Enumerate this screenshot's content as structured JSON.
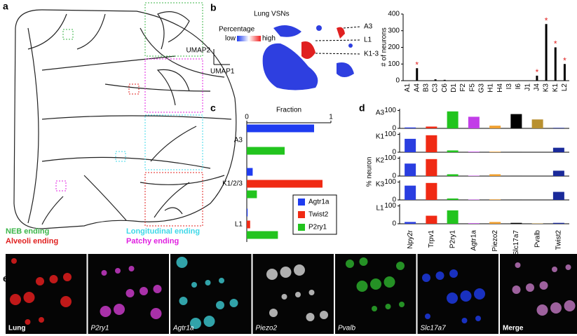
{
  "panels": [
    "a",
    "b",
    "c",
    "d",
    "e"
  ],
  "panel_a": {
    "legend": [
      {
        "text": "NEB ending",
        "color": "#3cb64a"
      },
      {
        "text": "Alveoli ending",
        "color": "#e0201f"
      },
      {
        "text": "Longitudinal ending",
        "color": "#3fd8e8"
      },
      {
        "text": "Patchy ending",
        "color": "#e020e0"
      }
    ]
  },
  "panel_b_umap": {
    "title": "Lung VSNs",
    "scale_title": "Percentage",
    "low": "low",
    "high": "high",
    "y_axis": "UMAP2",
    "x_axis": "UMAP1",
    "clusters": [
      "A3",
      "L1",
      "K1-3"
    ]
  },
  "panel_e": {
    "channels": [
      {
        "text": "Lung",
        "color": "#ff2020"
      },
      {
        "text": "P2ry1",
        "color": "#e040e0"
      },
      {
        "text": "Agtr1a",
        "color": "#40d8e0"
      },
      {
        "text": "Piezo2",
        "color": "#e8e8e8"
      },
      {
        "text": "Pvalb",
        "color": "#30c030"
      },
      {
        "text": "Slc17a7",
        "color": "#2040ff"
      },
      {
        "text": "Merge",
        "color": "#d080d0"
      }
    ]
  },
  "chart_data": [
    {
      "type": "bar",
      "ylabel": "# of neurons",
      "categories": [
        "A1",
        "A4",
        "B3",
        "C3",
        "C6",
        "D1",
        "F2",
        "F5",
        "G3",
        "H1",
        "H4",
        "I3",
        "I6",
        "J1",
        "J4",
        "K3",
        "K1",
        "L2"
      ],
      "values": [
        0,
        75,
        0,
        8,
        5,
        2,
        0,
        0,
        0,
        0,
        0,
        0,
        0,
        0,
        30,
        340,
        200,
        100
      ],
      "starred": [
        false,
        true,
        false,
        false,
        false,
        false,
        false,
        false,
        false,
        false,
        false,
        false,
        false,
        false,
        true,
        true,
        true,
        true
      ],
      "star_label": "*",
      "color": "#000000",
      "star_color": "#e0201f",
      "ylim": [
        0,
        400
      ],
      "yticks": [
        0,
        100,
        200,
        300,
        400
      ]
    },
    {
      "type": "barh",
      "title": "Fraction",
      "categories": [
        "A3",
        "K1/2/3",
        "L1"
      ],
      "series": [
        {
          "name": "Agtr1a",
          "color": "#1f3cf0",
          "values": [
            0.8,
            0.07,
            0.01
          ]
        },
        {
          "name": "Twist2",
          "color": "#f02a14",
          "values": [
            0,
            0.9,
            0.04
          ]
        },
        {
          "name": "P2ry1",
          "color": "#22c41e",
          "values": [
            0.45,
            0.12,
            0.37
          ]
        }
      ],
      "xlim": [
        0,
        1
      ],
      "xticks": [
        0,
        1
      ]
    },
    {
      "type": "facets",
      "ylabel": "% neuron",
      "categories": [
        "Npy2r",
        "Trpv1",
        "P2ry1",
        "Agtr1a",
        "Piezo2",
        "Slc17a7",
        "Pvalb",
        "Twist2"
      ],
      "colors": [
        "#2a3ee0",
        "#f02a14",
        "#22c41e",
        "#c23ee8",
        "#f0a030",
        "#000000",
        "#b8902f",
        "#1a2a9a"
      ],
      "facets": [
        {
          "name": "A3",
          "values": [
            5,
            10,
            95,
            65,
            15,
            80,
            50,
            3
          ]
        },
        {
          "name": "K1",
          "values": [
            75,
            95,
            10,
            3,
            3,
            2,
            0,
            25
          ]
        },
        {
          "name": "K2",
          "values": [
            70,
            95,
            10,
            2,
            10,
            2,
            0,
            30
          ]
        },
        {
          "name": "K3",
          "values": [
            80,
            95,
            8,
            2,
            3,
            2,
            0,
            45
          ]
        },
        {
          "name": "L1",
          "values": [
            10,
            45,
            75,
            3,
            10,
            5,
            2,
            5
          ]
        }
      ],
      "ylim": [
        0,
        110
      ],
      "yticks": [
        0,
        100
      ]
    }
  ]
}
